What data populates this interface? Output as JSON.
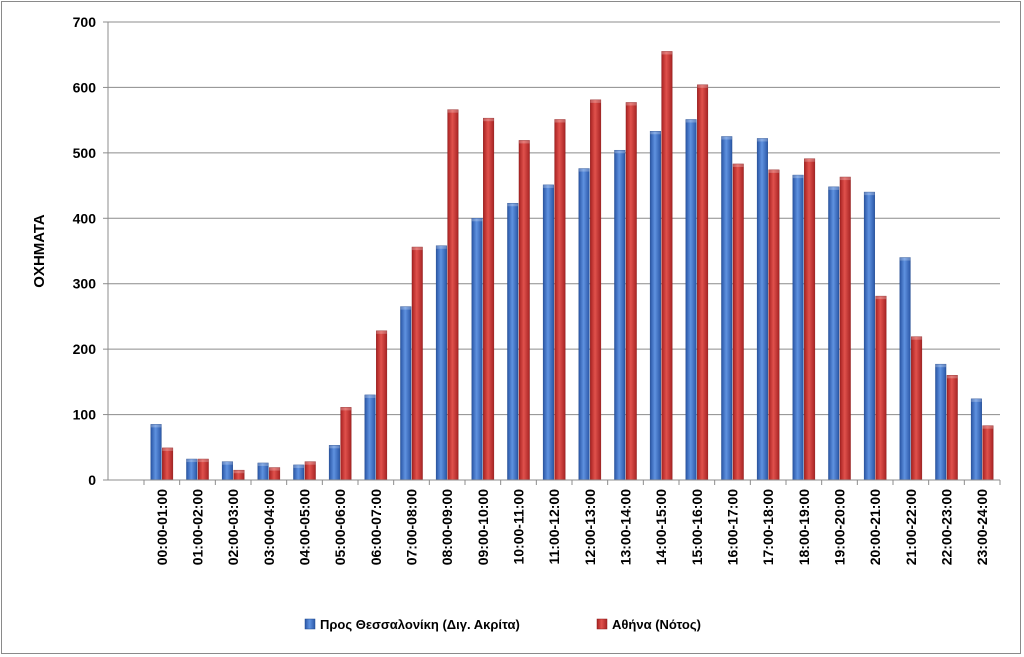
{
  "chart_data": {
    "type": "bar",
    "ylabel": "ΟΧΗΜΑΤΑ",
    "xlabel": "",
    "ylim": [
      0,
      700
    ],
    "yticks": [
      "0",
      "100",
      "200",
      "300",
      "400",
      "500",
      "600",
      "700"
    ],
    "grid": true,
    "legend_position": "bottom",
    "categories": [
      "00:00-01:00",
      "01:00-02:00",
      "02:00-03:00",
      "03:00-04:00",
      "04:00-05:00",
      "05:00-06:00",
      "06:00-07:00",
      "07:00-08:00",
      "08:00-09:00",
      "09:00-10:00",
      "10:00-11:00",
      "11:00-12:00",
      "12:00-13:00",
      "13:00-14:00",
      "14:00-15:00",
      "15:00-16:00",
      "16:00-17:00",
      "17:00-18:00",
      "18:00-19:00",
      "19:00-20:00",
      "20:00-21:00",
      "21:00-22:00",
      "22:00-23:00",
      "23:00-24:00"
    ],
    "series": [
      {
        "name": "Προς Θεσσαλονίκη (Διγ. Ακρίτα)",
        "color": "#3c6fc4",
        "values": [
          85,
          32,
          28,
          26,
          23,
          53,
          130,
          265,
          358,
          400,
          423,
          451,
          476,
          504,
          533,
          551,
          525,
          522,
          466,
          448,
          440,
          340,
          177,
          124
        ]
      },
      {
        "name": "Αθήνα (Νότος)",
        "color": "#c8332f",
        "values": [
          49,
          32,
          15,
          19,
          28,
          111,
          228,
          356,
          566,
          553,
          519,
          551,
          581,
          577,
          655,
          604,
          483,
          474,
          491,
          463,
          281,
          219,
          160,
          83
        ]
      }
    ]
  }
}
